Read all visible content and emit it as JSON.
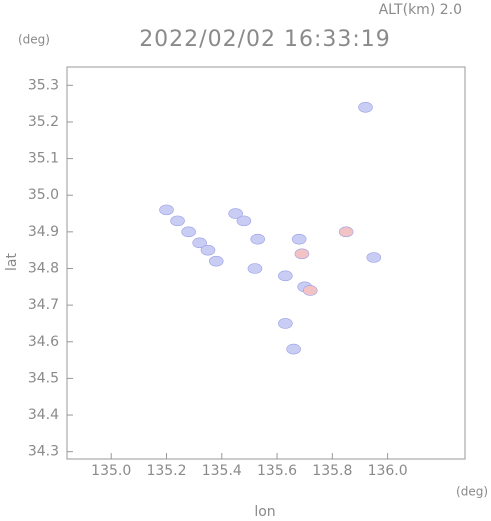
{
  "chart_data": {
    "type": "scatter",
    "title": "2022/02/02 16:33:19",
    "subtitle": "ALT(km) 2.0",
    "x_label": "lon",
    "y_label": "lat",
    "x_unit": "(deg)",
    "y_unit": "(deg)",
    "xlim": [
      134.84,
      136.28
    ],
    "ylim": [
      34.28,
      35.35
    ],
    "xticks": [
      {
        "value": 135.0,
        "label": "135.0"
      },
      135.2,
      135.4,
      135.6,
      135.8,
      {
        "value": 136.0,
        "label": "136.0"
      }
    ],
    "yticks": [
      34.3,
      34.4,
      34.5,
      34.6,
      34.7,
      34.8,
      34.9,
      {
        "value": 35.0,
        "label": "35.0"
      },
      35.1,
      35.2,
      35.3
    ],
    "series": [
      {
        "color": "#c9cdf4",
        "x": [
          135.2,
          135.24,
          135.28,
          135.32,
          135.35,
          135.38,
          135.45,
          135.48,
          135.53,
          135.52,
          135.63,
          135.7,
          135.68,
          135.95,
          135.92,
          135.63,
          135.66
        ],
        "values": [
          34.96,
          34.93,
          34.9,
          34.87,
          34.85,
          34.82,
          34.95,
          34.93,
          34.88,
          34.8,
          34.78,
          34.75,
          34.88,
          34.83,
          35.24,
          34.65,
          34.58
        ]
      },
      {
        "color": "#f3c2c4",
        "x": [
          135.69,
          135.85,
          135.72
        ],
        "values": [
          34.84,
          34.9,
          34.74
        ]
      }
    ]
  }
}
